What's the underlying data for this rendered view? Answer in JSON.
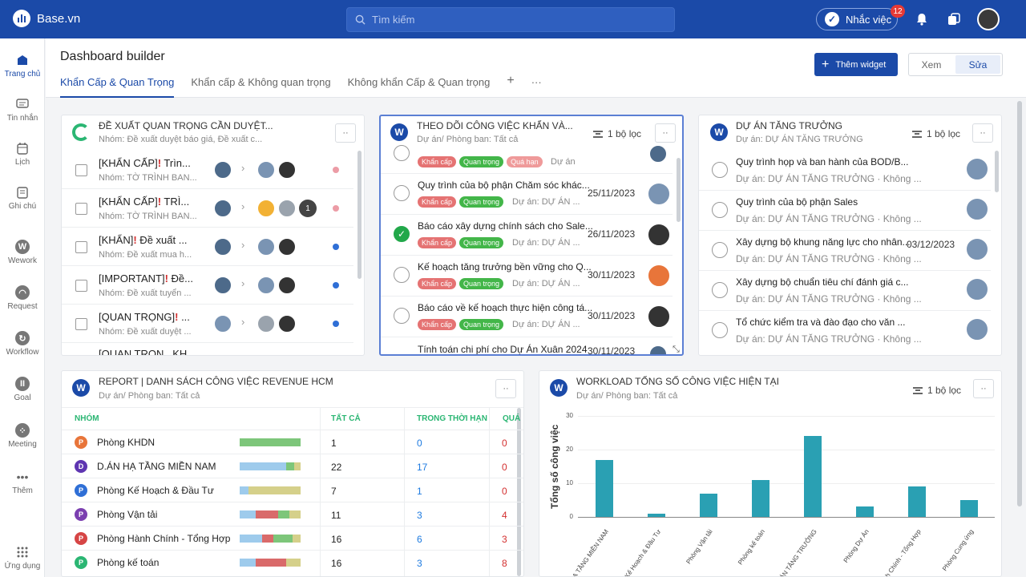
{
  "app": {
    "brand": "Base.vn",
    "search_placeholder": "Tìm kiếm",
    "task_button": "Nhắc việc",
    "task_badge": "12"
  },
  "nav": [
    {
      "label": "Trang chủ",
      "icon": "home-icon"
    },
    {
      "label": "Tin nhắn",
      "icon": "message-icon"
    },
    {
      "label": "Lịch",
      "icon": "calendar-icon"
    },
    {
      "label": "Ghi chú",
      "icon": "note-icon"
    },
    {
      "label": "Wework",
      "icon": "wework-icon"
    },
    {
      "label": "Request",
      "icon": "request-icon"
    },
    {
      "label": "Workflow",
      "icon": "workflow-icon"
    },
    {
      "label": "Goal",
      "icon": "goal-icon"
    },
    {
      "label": "Meeting",
      "icon": "meeting-icon"
    },
    {
      "label": "Thêm",
      "icon": "more-icon"
    },
    {
      "label": "Ứng dụng",
      "icon": "apps-icon"
    }
  ],
  "page": {
    "title": "Dashboard builder",
    "tabs": [
      "Khẩn Cấp & Quan Trọng",
      "Khẩn cấp & Không quan trọng",
      "Không khẩn Cấp & Quan trọng"
    ],
    "add_widget": "Thêm widget",
    "mode_view": "Xem",
    "mode_edit": "Sửa"
  },
  "w1": {
    "title": "ĐỀ XUẤT QUAN TRỌNG CẦN DUYỆT...",
    "sub": "Nhóm: Đề xuất duyệt báo giá, Đề xuất c...",
    "rows": [
      {
        "title": "[KHẨN CẤP]",
        "rest": " Trìn...",
        "sub": "Nhóm: TỜ TRÌNH BAN...",
        "count": "",
        "dot": "#ec9ca6"
      },
      {
        "title": "[KHẨN CẤP]",
        "rest": " TRÌ...",
        "sub": "Nhóm: TỜ TRÌNH BAN...",
        "count": "1",
        "dot": "#ec9ca6"
      },
      {
        "title": "[KHẨN]",
        "rest": " Đề xuất ...",
        "sub": "Nhóm: Đề xuất mua h...",
        "count": "",
        "dot": "#2f6fd6"
      },
      {
        "title": "[IMPORTANT]",
        "rest": " Đề...",
        "sub": "Nhóm: Đề xuất tuyển ...",
        "count": "",
        "dot": "#2f6fd6"
      },
      {
        "title": "[QUAN TRỌNG]",
        "rest": " ...",
        "sub": "Nhóm: Đề xuất duyệt ...",
        "count": "",
        "dot": "#2f6fd6"
      }
    ],
    "partial": "[QUAN TRỌN...KH..."
  },
  "w2": {
    "title": "THEO DÕI CÔNG VIỆC KHẨN VÀ...",
    "sub": "Dự án/ Phòng ban: Tất cả",
    "filter": "1 bộ lọc",
    "top_tags": [
      "Khẩn cấp",
      "Quan trọng",
      "Quá hạn"
    ],
    "top_project": "Dự án",
    "rows": [
      {
        "title": "Quy trình của bộ phận Chăm sóc khác...",
        "project": "Dự án: DỰ ÁN ...",
        "date": "25/11/2023",
        "done": false
      },
      {
        "title": "Báo cáo xây dựng chính sách cho Sale...",
        "project": "Dự án: DỰ ÁN ...",
        "date": "26/11/2023",
        "done": true
      },
      {
        "title": "Kế hoạch tăng trưởng bền vững cho Q...",
        "project": "Dự án: DỰ ÁN ...",
        "date": "30/11/2023",
        "done": false
      },
      {
        "title": "Báo cáo về kế hoạch thực hiện công tá...",
        "project": "Dự án: DỰ ÁN ...",
        "date": "30/11/2023",
        "done": false
      }
    ],
    "tag1": "Khẩn cấp",
    "tag2": "Quan trọng",
    "last_title": "Tính toán chi phí cho Dự Án Xuân 2024",
    "last_date": "30/11/2023"
  },
  "w3": {
    "title": "DỰ ÁN TĂNG TRƯỞNG",
    "sub": "Dự án: DỰ ÁN TĂNG TRƯỞNG",
    "filter": "1 bộ lọc",
    "rows": [
      {
        "title": "Quy trình họp và ban hành của BOD/B...",
        "sub": "Dự án: DỰ ÁN TĂNG TRƯỞNG · Không ...",
        "date": ""
      },
      {
        "title": "Quy trình của bộ phận Sales",
        "sub": "Dự án: DỰ ÁN TĂNG TRƯỞNG · Không ...",
        "date": ""
      },
      {
        "title": "Xây dựng bộ khung năng lực cho nhân...",
        "sub": "Dự án: DỰ ÁN TĂNG TRƯỞNG · Không ...",
        "date": "03/12/2023"
      },
      {
        "title": "Xây dựng bộ chuẩn tiêu chí đánh giá c...",
        "sub": "Dự án: DỰ ÁN TĂNG TRƯỞNG · Không ...",
        "date": ""
      },
      {
        "title": "Tổ chức kiểm tra và đào đạo cho văn ...",
        "sub": "Dự án: DỰ ÁN TĂNG TRƯỞNG · Không ...",
        "date": ""
      }
    ]
  },
  "w4": {
    "title": "REPORT | DANH SÁCH CÔNG VIỆC REVENUE HCM",
    "sub": "Dự án/ Phòng ban: Tất cả",
    "headers": [
      "NHÓM",
      "TẤT CẢ",
      "TRONG THỜI HẠN",
      "QUÁ"
    ],
    "rows": [
      {
        "letter": "P",
        "color": "#e8753a",
        "name": "Phòng KHDN",
        "all": "1",
        "ontime": "0",
        "over": "0"
      },
      {
        "letter": "D",
        "color": "#5e35b1",
        "name": "D.ÁN HẠ TẦNG MIỀN NAM",
        "all": "22",
        "ontime": "17",
        "over": "0"
      },
      {
        "letter": "P",
        "color": "#2f6fd6",
        "name": "Phòng Kế Hoạch & Đầu Tư",
        "all": "7",
        "ontime": "1",
        "over": "0"
      },
      {
        "letter": "P",
        "color": "#7b3fb0",
        "name": "Phòng Vận tải",
        "all": "11",
        "ontime": "3",
        "over": "4"
      },
      {
        "letter": "P",
        "color": "#d64545",
        "name": "Phòng Hành Chính - Tổng Hợp",
        "all": "16",
        "ontime": "6",
        "over": "3"
      },
      {
        "letter": "P",
        "color": "#2bb673",
        "name": "Phòng kế toán",
        "all": "16",
        "ontime": "3",
        "over": "8"
      }
    ]
  },
  "w5": {
    "title": "WORKLOAD TỔNG SỐ CÔNG VIỆC HIỆN TẠI",
    "sub": "Dự án/ Phòng ban: Tất cả",
    "filter": "1 bộ lọc"
  },
  "chart_data": {
    "type": "bar",
    "title": "WORKLOAD TỔNG SỐ CÔNG VIỆC HIỆN TẠI",
    "ylabel": "Tổng số công việc",
    "ylim": [
      0,
      30
    ],
    "yticks": [
      "0",
      "10",
      "20",
      "30"
    ],
    "categories": [
      "HẠ TẦNG MIỀN NAM",
      "Kế Hoạch & Đầu Tư",
      "Phòng Vận tải",
      "Phòng kế toán",
      "Ý ÁN TĂNG TRƯỞNG",
      "Phòng Dự Án",
      "nh Chính - Tổng Hợp",
      "Phòng Cung ứng"
    ],
    "values": [
      17,
      1,
      7,
      11,
      24,
      3,
      9,
      5
    ],
    "color": "#2aa0b3"
  }
}
